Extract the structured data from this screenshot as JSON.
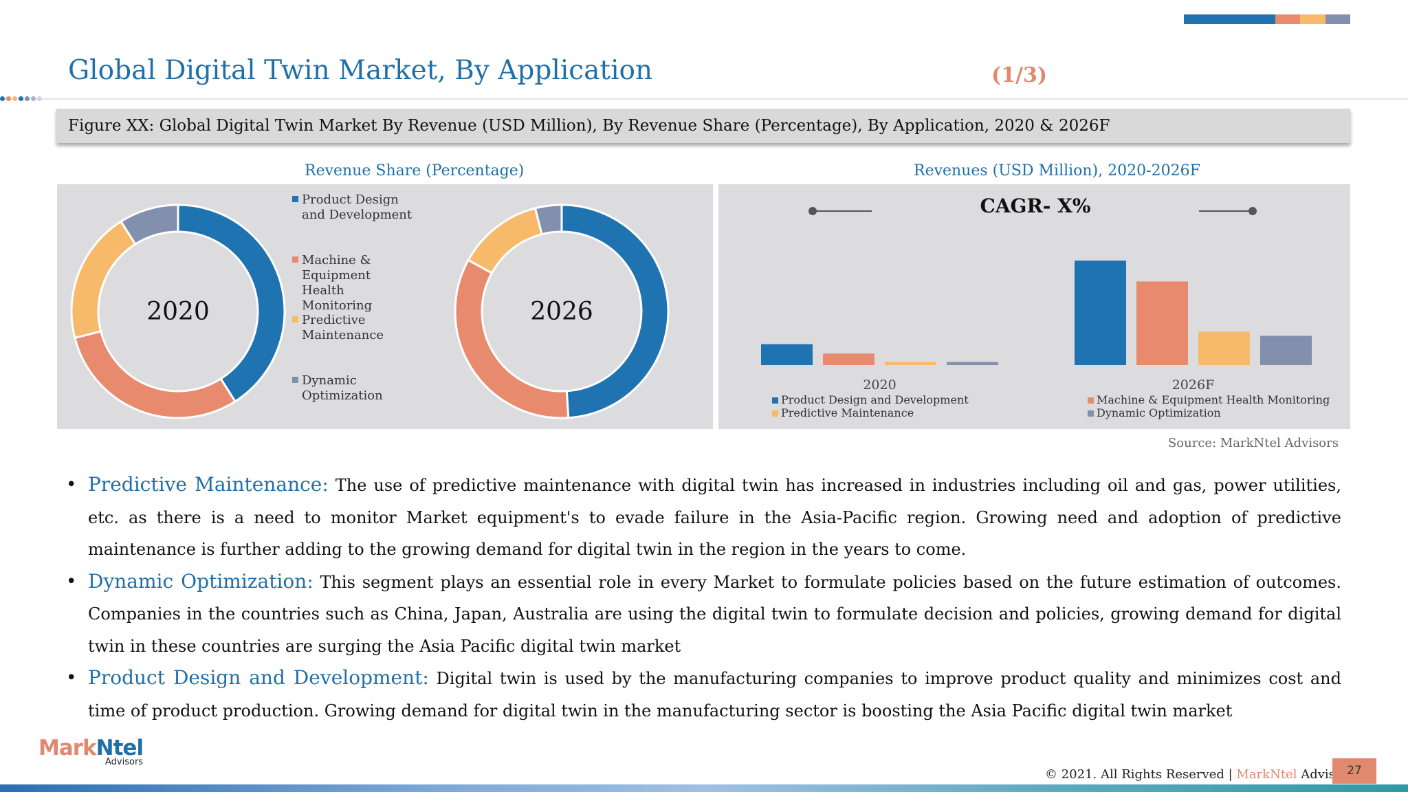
{
  "header": {
    "title": "Global Digital Twin Market, By Application",
    "page_fraction": "(1/3)",
    "accent_segments": [
      {
        "color": "#1f73b1",
        "weight": 132
      },
      {
        "color": "#e88a6e",
        "weight": 36
      },
      {
        "color": "#f7b96a",
        "weight": 36
      },
      {
        "color": "#8290ad",
        "weight": 36
      }
    ]
  },
  "figure": {
    "caption": "Figure XX: Global Digital Twin Market By Revenue (USD Million), By Revenue Share (Percentage), By Application,  2020 & 2026F",
    "left_title": "Revenue Share (Percentage)",
    "right_title": "Revenues (USD Million), 2020-2026F",
    "source": "Source: MarkNtel Advisors"
  },
  "chart_data": [
    {
      "type": "pie",
      "center_label": "2020",
      "categories": [
        "Product Design and Development",
        "Machine & Equipment Health Monitoring",
        "Predictive Maintenance",
        "Dynamic Optimization"
      ],
      "values": [
        41,
        30,
        20,
        9
      ],
      "colors": [
        "#1f73b1",
        "#e88a6e",
        "#f7b96a",
        "#8290ad"
      ]
    },
    {
      "type": "pie",
      "center_label": "2026",
      "categories": [
        "Product Design and Development",
        "Machine & Equipment Health Monitoring",
        "Predictive Maintenance",
        "Dynamic Optimization"
      ],
      "values": [
        49,
        34,
        13,
        4
      ],
      "colors": [
        "#1f73b1",
        "#e88a6e",
        "#f7b96a",
        "#8290ad"
      ]
    },
    {
      "type": "bar",
      "title": "CAGR- X%",
      "categories": [
        "2020",
        "2026F"
      ],
      "series": [
        {
          "name": "Product Design and Development",
          "values": [
            20,
            100
          ],
          "color": "#1f73b1"
        },
        {
          "name": "Machine & Equipment Health Monitoring",
          "values": [
            11,
            80
          ],
          "color": "#e88a6e"
        },
        {
          "name": "Predictive Maintenance",
          "values": [
            3,
            32
          ],
          "color": "#f7b96a"
        },
        {
          "name": "Dynamic Optimization",
          "values": [
            3,
            28
          ],
          "color": "#8290ad"
        }
      ],
      "ylim": [
        0,
        100
      ],
      "legend": "bottom"
    }
  ],
  "donut_legend": [
    {
      "lines": [
        "Product Design",
        "and Development"
      ],
      "color": "#1f73b1"
    },
    {
      "lines": [
        "Machine &",
        "Equipment Health",
        "Monitoring"
      ],
      "color": "#e88a6e"
    },
    {
      "lines": [
        "Predictive",
        "Maintenance"
      ],
      "color": "#f7b96a"
    },
    {
      "lines": [
        "Dynamic",
        "Optimization"
      ],
      "color": "#8290ad"
    }
  ],
  "bullets": [
    {
      "heading": "Predictive Maintenance:",
      "text": " The use of predictive maintenance with digital twin has increased in industries including oil and gas, power utilities, etc. as there is a need to monitor Market equipment's to evade failure in the Asia-Pacific region. Growing need and adoption of predictive maintenance is further adding to the growing demand for digital twin in the region in the years to come."
    },
    {
      "heading": "Dynamic Optimization:",
      "text": " This segment plays an essential role in every Market to formulate policies based on the future estimation of outcomes. Companies in the countries such as China, Japan, Australia are using the digital twin to formulate decision and policies, growing demand for digital twin in these countries are surging the Asia Pacific digital twin market"
    },
    {
      "heading": "Product Design and Development:",
      "text": " Digital twin is used by the manufacturing companies to improve product quality and minimizes cost and time of product production. Growing demand for digital twin in the manufacturing sector is boosting the Asia Pacific digital twin market"
    }
  ],
  "footer": {
    "copyright_prefix": "© 2021. All Rights Reserved | ",
    "brand": "MarkNtel",
    "suffix": " Advisors",
    "page_number": "27",
    "logo_mark": "Mark",
    "logo_ntel": "Ntel",
    "logo_sub": "Advisors"
  },
  "colors": {
    "accent_blue": "#1f6fa8",
    "accent_orange": "#e0896e"
  }
}
